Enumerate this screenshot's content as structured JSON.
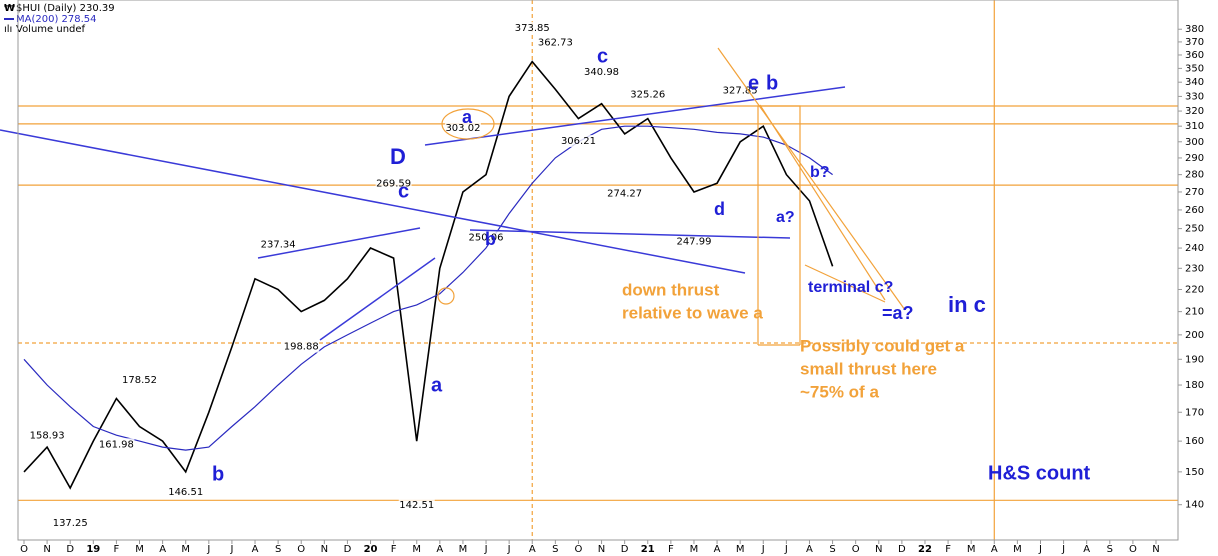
{
  "chart_data": {
    "type": "line",
    "log_scale": true,
    "ylim": [
      130,
      394
    ],
    "yticks": [
      140,
      150,
      160,
      170,
      180,
      190,
      200,
      210,
      220,
      230,
      240,
      250,
      260,
      270,
      280,
      290,
      300,
      310,
      320,
      330,
      340,
      350,
      360,
      370,
      380
    ],
    "xlim": [
      "2018-10",
      "2022-11"
    ],
    "xticks": [
      {
        "value": "2018-10",
        "label": "O"
      },
      {
        "value": "2018-11",
        "label": "N"
      },
      {
        "value": "2018-12",
        "label": "D"
      },
      {
        "value": "2019-01",
        "label": "19"
      },
      {
        "value": "2019-02",
        "label": "F"
      },
      {
        "value": "2019-03",
        "label": "M"
      },
      {
        "value": "2019-04",
        "label": "A"
      },
      {
        "value": "2019-05",
        "label": "M"
      },
      {
        "value": "2019-06",
        "label": "J"
      },
      {
        "value": "2019-07",
        "label": "J"
      },
      {
        "value": "2019-08",
        "label": "A"
      },
      {
        "value": "2019-09",
        "label": "S"
      },
      {
        "value": "2019-10",
        "label": "O"
      },
      {
        "value": "2019-11",
        "label": "N"
      },
      {
        "value": "2019-12",
        "label": "D"
      },
      {
        "value": "2020-01",
        "label": "20"
      },
      {
        "value": "2020-02",
        "label": "F"
      },
      {
        "value": "2020-03",
        "label": "M"
      },
      {
        "value": "2020-04",
        "label": "A"
      },
      {
        "value": "2020-05",
        "label": "M"
      },
      {
        "value": "2020-06",
        "label": "J"
      },
      {
        "value": "2020-07",
        "label": "J"
      },
      {
        "value": "2020-08",
        "label": "A"
      },
      {
        "value": "2020-09",
        "label": "S"
      },
      {
        "value": "2020-10",
        "label": "O"
      },
      {
        "value": "2020-11",
        "label": "N"
      },
      {
        "value": "2020-12",
        "label": "D"
      },
      {
        "value": "2021-01",
        "label": "21"
      },
      {
        "value": "2021-02",
        "label": "F"
      },
      {
        "value": "2021-03",
        "label": "M"
      },
      {
        "value": "2021-04",
        "label": "A"
      },
      {
        "value": "2021-05",
        "label": "M"
      },
      {
        "value": "2021-06",
        "label": "J"
      },
      {
        "value": "2021-07",
        "label": "J"
      },
      {
        "value": "2021-08",
        "label": "A"
      },
      {
        "value": "2021-09",
        "label": "S"
      },
      {
        "value": "2021-10",
        "label": "O"
      },
      {
        "value": "2021-11",
        "label": "N"
      },
      {
        "value": "2021-12",
        "label": "D"
      },
      {
        "value": "2022-01",
        "label": "22"
      },
      {
        "value": "2022-02",
        "label": "F"
      },
      {
        "value": "2022-03",
        "label": "M"
      },
      {
        "value": "2022-04",
        "label": "A"
      },
      {
        "value": "2022-05",
        "label": "M"
      },
      {
        "value": "2022-06",
        "label": "J"
      },
      {
        "value": "2022-07",
        "label": "J"
      },
      {
        "value": "2022-08",
        "label": "A"
      },
      {
        "value": "2022-09",
        "label": "S"
      },
      {
        "value": "2022-10",
        "label": "O"
      },
      {
        "value": "2022-11",
        "label": "N"
      }
    ],
    "x": [
      "2018-10",
      "2018-11",
      "2018-12",
      "2019-01",
      "2019-02",
      "2019-03",
      "2019-04",
      "2019-05",
      "2019-06",
      "2019-07",
      "2019-08",
      "2019-09",
      "2019-10",
      "2019-11",
      "2019-12",
      "2020-01",
      "2020-02",
      "2020-03",
      "2020-04",
      "2020-05",
      "2020-06",
      "2020-07",
      "2020-08",
      "2020-09",
      "2020-10",
      "2020-11",
      "2020-12",
      "2021-01",
      "2021-02",
      "2021-03",
      "2021-04",
      "2021-05",
      "2021-06",
      "2021-07",
      "2021-08",
      "2021-09"
    ],
    "series": [
      {
        "name": "$HUI (Daily) 230.39",
        "color": "#000000",
        "values": [
          150,
          158,
          145,
          160,
          175,
          165,
          160,
          150,
          170,
          195,
          225,
          220,
          210,
          215,
          225,
          240,
          235,
          160,
          230,
          270,
          280,
          330,
          355,
          335,
          315,
          325,
          305,
          315,
          290,
          270,
          275,
          300,
          310,
          280,
          265,
          231
        ]
      },
      {
        "name": "MA(200) 278.54",
        "color": "#2a2ac0",
        "values": [
          190,
          180,
          172,
          165,
          162,
          160,
          158,
          157,
          158,
          165,
          172,
          180,
          188,
          195,
          200,
          205,
          210,
          213,
          218,
          228,
          240,
          258,
          275,
          290,
          300,
          308,
          310,
          310,
          309,
          308,
          306,
          305,
          303,
          298,
          290,
          280
        ]
      }
    ],
    "legend_extra": "Volume undef",
    "peak_labels": [
      {
        "x": "2018-11",
        "value": 158.93
      },
      {
        "x": "2018-12",
        "value": 137.25
      },
      {
        "x": "2019-02",
        "value": 161.98
      },
      {
        "x": "2019-03",
        "value": 178.52
      },
      {
        "x": "2019-05",
        "value": 146.51
      },
      {
        "x": "2019-09",
        "value": 237.34
      },
      {
        "x": "2019-10",
        "value": 198.88
      },
      {
        "x": "2020-02",
        "value": 269.59
      },
      {
        "x": "2020-03",
        "value": 142.51
      },
      {
        "x": "2020-05",
        "value": 303.02
      },
      {
        "x": "2020-06",
        "value": 250.06
      },
      {
        "x": "2020-08",
        "value": 373.85
      },
      {
        "x": "2020-09",
        "value": 362.73
      },
      {
        "x": "2020-10",
        "value": 306.21
      },
      {
        "x": "2020-11",
        "value": 340.98
      },
      {
        "x": "2020-12",
        "value": 274.27
      },
      {
        "x": "2021-01",
        "value": 325.26
      },
      {
        "x": "2021-03",
        "value": 247.99
      },
      {
        "x": "2021-05",
        "value": 327.85
      }
    ],
    "hlines": [
      {
        "value": 323.4
      },
      {
        "value": 311.5
      },
      {
        "value": 273.9
      },
      {
        "value": 196.6,
        "dashed": true
      },
      {
        "value": 141.3
      }
    ],
    "vlines": [
      {
        "x": "2020-08",
        "dashed": true
      },
      {
        "x": "2022-04"
      }
    ],
    "line_color": "#f2a23a",
    "wave_labels": [
      "D",
      "c",
      "a",
      "b",
      "a",
      "b",
      "c",
      "e",
      "b",
      "d",
      "a?",
      "b?",
      "terminal c?",
      "=a?",
      "in c",
      "H&S count"
    ],
    "notes": [
      "down thrust",
      "relative to wave a",
      "Possibly could get a",
      "small thrust here",
      "~75% of a"
    ]
  }
}
